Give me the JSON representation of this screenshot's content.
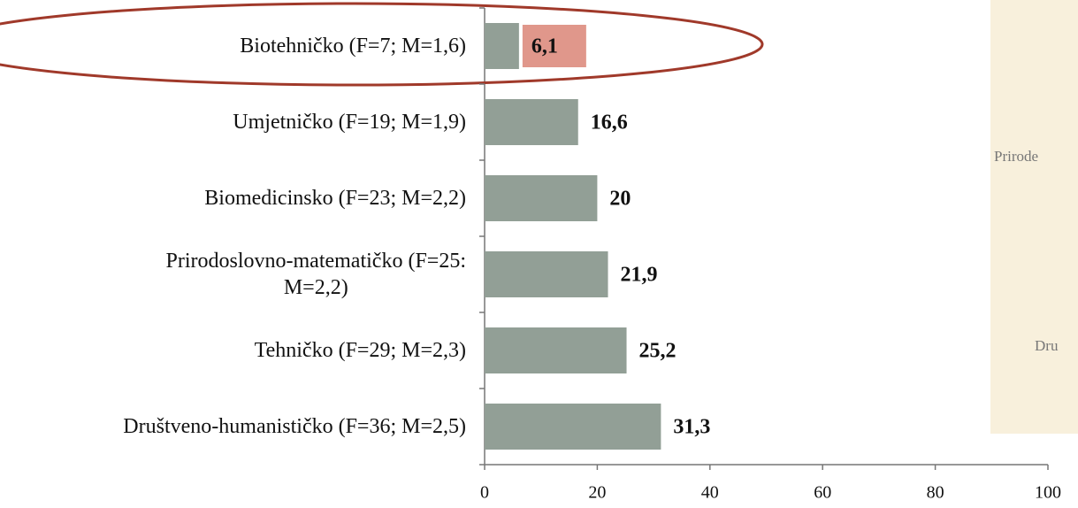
{
  "chart_data": {
    "type": "barh",
    "categories": [
      "Biotehničko (F=7; M=1,6)",
      "Umjetničko (F=19; M=1,9)",
      "Biomedicinsko (F=23; M=2,2)",
      "Prirodoslovno-matematičko (F=25:\nM=2,2)",
      "Tehničko (F=29; M=2,3)",
      "Društveno-humanističko (F=36; M=2,5)"
    ],
    "values": [
      6.1,
      16.6,
      20,
      21.9,
      25.2,
      31.3
    ],
    "value_labels": [
      "6,1",
      "16,6",
      "20",
      "21,9",
      "25,2",
      "31,3"
    ],
    "color": "#929f96",
    "xlim": [
      0,
      100
    ],
    "xticks": [
      0,
      20,
      40,
      60,
      80,
      100
    ],
    "grid": false
  },
  "side_panel": {
    "labels": [
      "Prirode",
      "Dru"
    ]
  }
}
